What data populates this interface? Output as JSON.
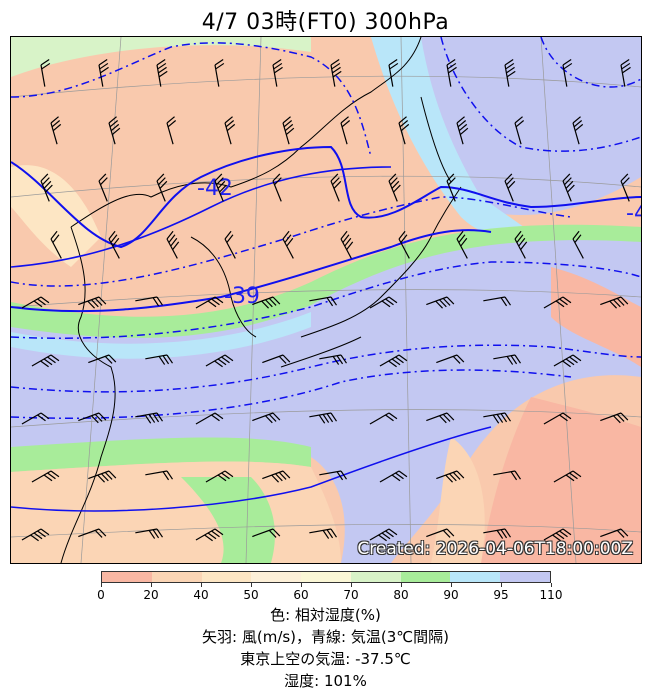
{
  "title": "4/7  03時(FT0)     300hPa",
  "created_stamp": "Created: 2026-04-06T18:00:00Z",
  "isotherm_labels": [
    "-42",
    "-39",
    "-4"
  ],
  "colorbar": {
    "ticks": [
      "0",
      "20",
      "40",
      "50",
      "60",
      "70",
      "80",
      "90",
      "95",
      "110"
    ],
    "colors": [
      "#f9b7a3",
      "#fbd5b5",
      "#fde6c4",
      "#fdf0d8",
      "#fbf7d6",
      "#d8f3c8",
      "#a8ec9a",
      "#b9e6f9",
      "#c3c8f2"
    ]
  },
  "captions": {
    "line1": "色: 相対湿度(%)",
    "line2": "矢羽: 風(m/s)，青線: 気温(3℃間隔)",
    "line3": "東京上空の気温: -37.5℃",
    "line4": "湿度: 101%"
  }
}
